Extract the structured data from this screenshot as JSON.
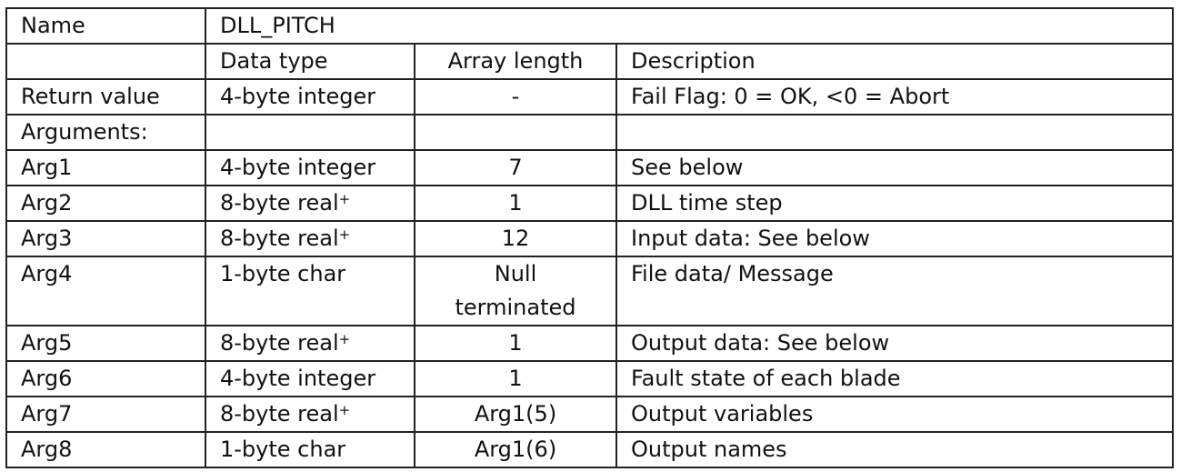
{
  "name_label": "Name",
  "name_value": "DLL_PITCH",
  "headers": [
    "",
    "Data type",
    "Array length",
    "Description"
  ],
  "return_row": {
    "label": "Return value",
    "type": "4-byte integer",
    "length": "-",
    "description": "Fail Flag: 0 = OK, <0 = Abort"
  },
  "arguments_label": "Arguments:",
  "rows": [
    {
      "label": "Arg1",
      "type": "4-byte integer",
      "sup": "",
      "length": "7",
      "description": "See below"
    },
    {
      "label": "Arg2",
      "type": "8-byte real",
      "sup": "+",
      "length": "1",
      "description": "DLL time step"
    },
    {
      "label": "Arg3",
      "type": "8-byte real",
      "sup": "+",
      "length": "12",
      "description": "Input data: See below"
    },
    {
      "label": "Arg4",
      "type": "1-byte char",
      "sup": "",
      "length": "Null terminated",
      "description": "File data/ Message"
    },
    {
      "label": "Arg5",
      "type": "8-byte real",
      "sup": "+",
      "length": "1",
      "description": "Output data: See below"
    },
    {
      "label": "Arg6",
      "type": "4-byte integer",
      "sup": "",
      "length": "1",
      "description": "Fault state of each blade"
    },
    {
      "label": "Arg7",
      "type": "8-byte real",
      "sup": "+",
      "length": "Arg1(5)",
      "description": "Output variables"
    },
    {
      "label": "Arg8",
      "type": "1-byte char",
      "sup": "",
      "length": "Arg1(6)",
      "description": "Output names"
    }
  ]
}
